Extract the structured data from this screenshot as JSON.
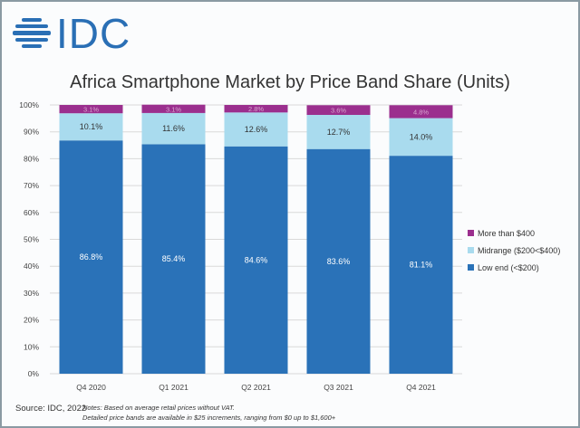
{
  "logo": {
    "text": "IDC"
  },
  "chart_data": {
    "type": "bar",
    "stacked": true,
    "title": "Africa Smartphone Market by Price Band Share (Units)",
    "categories": [
      "Q4 2020",
      "Q1 2021",
      "Q2 2021",
      "Q3 2021",
      "Q4 2021"
    ],
    "series": [
      {
        "name": "Low end (<$200)",
        "color": "#2a72b8",
        "values": [
          86.8,
          85.4,
          84.6,
          83.6,
          81.1
        ],
        "labels": [
          "86.8%",
          "85.4%",
          "84.6%",
          "83.6%",
          "81.1%"
        ]
      },
      {
        "name": "Midrange ($200<$400)",
        "color": "#a9dbee",
        "values": [
          10.1,
          11.6,
          12.6,
          12.7,
          14.0
        ],
        "labels": [
          "10.1%",
          "11.6%",
          "12.6%",
          "12.7%",
          "14.0%"
        ]
      },
      {
        "name": "More than $400",
        "color": "#9b2f8e",
        "values": [
          3.1,
          3.1,
          2.8,
          3.6,
          4.8
        ],
        "labels": [
          "3.1%",
          "3.1%",
          "2.8%",
          "3.6%",
          "4.8%"
        ]
      }
    ],
    "ylim": [
      0,
      100
    ],
    "yticks": [
      "0%",
      "10%",
      "20%",
      "30%",
      "40%",
      "50%",
      "60%",
      "70%",
      "80%",
      "90%",
      "100%"
    ],
    "grid": true,
    "legend": "right",
    "legend_order": [
      "More than $400",
      "Midrange ($200<$400)",
      "Low end (<$200)"
    ]
  },
  "footer": {
    "source": "Source: IDC, 2022",
    "notes_line1": "Notes:  Based on average retail prices without VAT.",
    "notes_line2": "Detailed price bands are available in $25 increments, ranging from $0 up to $1,600+"
  }
}
